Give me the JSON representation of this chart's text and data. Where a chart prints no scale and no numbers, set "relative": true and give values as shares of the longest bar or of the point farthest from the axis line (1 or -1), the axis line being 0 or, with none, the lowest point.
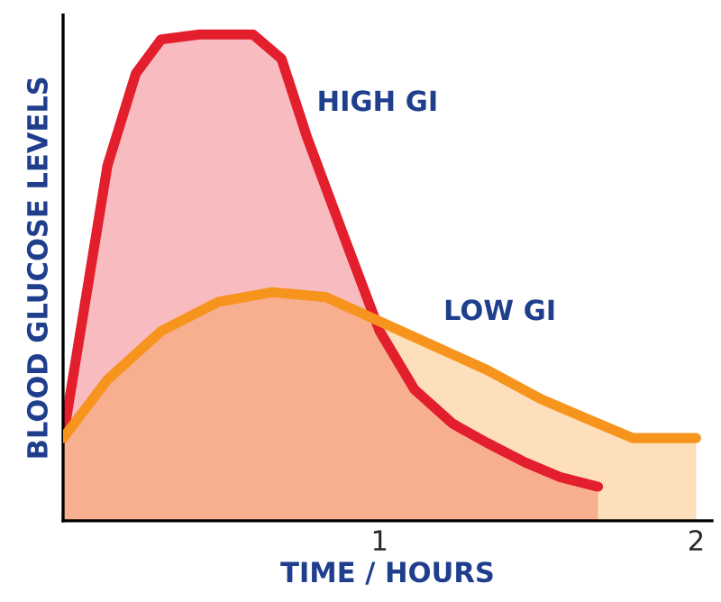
{
  "chart_data": {
    "type": "area",
    "xlabel": "TIME / HOURS",
    "ylabel": "BLOOD GLUCOSE LEVELS",
    "relative": true,
    "xlim": [
      0,
      2.05
    ],
    "xticks": [
      1,
      2
    ],
    "tick_labels": "x",
    "grid": false,
    "legend": false,
    "series": [
      {
        "name": "HIGH GI",
        "color": "#e31e2d",
        "x": [
          0,
          0.06,
          0.14,
          0.23,
          0.31,
          0.43,
          0.6,
          0.69,
          0.77,
          0.89,
          1.0,
          1.11,
          1.23,
          1.34,
          1.46,
          1.57,
          1.69
        ],
        "values": [
          0.17,
          0.41,
          0.73,
          0.92,
          0.99,
          1.0,
          1.0,
          0.95,
          0.79,
          0.58,
          0.39,
          0.27,
          0.2,
          0.16,
          0.12,
          0.09,
          0.07
        ]
      },
      {
        "name": "LOW GI",
        "color": "#f7941d",
        "x": [
          0,
          0.14,
          0.31,
          0.49,
          0.66,
          0.83,
          1.0,
          1.17,
          1.34,
          1.51,
          1.69,
          1.8,
          2.0
        ],
        "values": [
          0.17,
          0.29,
          0.39,
          0.45,
          0.47,
          0.46,
          0.41,
          0.36,
          0.31,
          0.25,
          0.2,
          0.17,
          0.17
        ]
      }
    ]
  }
}
